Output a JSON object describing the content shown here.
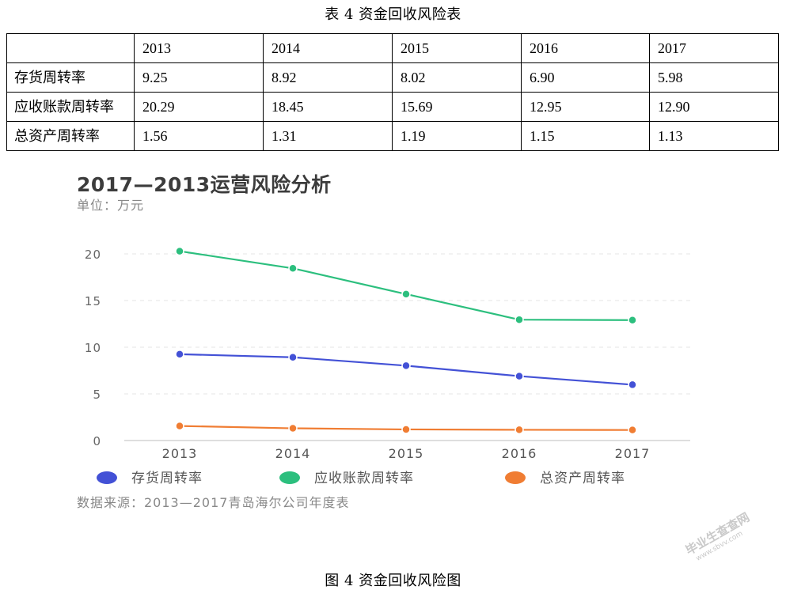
{
  "table": {
    "caption": "表 4  资金回收风险表",
    "header": [
      "",
      "2013",
      "2014",
      "2015",
      "2016",
      "2017"
    ],
    "rows": [
      {
        "label": "存货周转率",
        "values": [
          "9.25",
          "8.92",
          "8.02",
          "6.90",
          "5.98"
        ]
      },
      {
        "label": "应收账款周转率",
        "values": [
          "20.29",
          "18.45",
          "15.69",
          "12.95",
          "12.90"
        ]
      },
      {
        "label": "总资产周转率",
        "values": [
          "1.56",
          "1.31",
          "1.19",
          "1.15",
          "1.13"
        ]
      }
    ]
  },
  "chart_data": {
    "type": "line",
    "title": "2017—2013运营风险分析",
    "subtitle": "单位：万元",
    "categories": [
      "2013",
      "2014",
      "2015",
      "2016",
      "2017"
    ],
    "yticks": [
      0,
      5,
      10,
      15,
      20
    ],
    "ylim": [
      0,
      23
    ],
    "grid": true,
    "legend_position": "bottom",
    "series": [
      {
        "name": "存货周转率",
        "color": "#4351d6",
        "values": [
          9.25,
          8.92,
          8.02,
          6.9,
          5.98
        ]
      },
      {
        "name": "应收账款周转率",
        "color": "#2cbf7e",
        "values": [
          20.29,
          18.45,
          15.69,
          12.95,
          12.9
        ]
      },
      {
        "name": "总资产周转率",
        "color": "#f07d33",
        "values": [
          1.56,
          1.31,
          1.19,
          1.15,
          1.13
        ]
      }
    ],
    "source": "数据来源：2013—2017青岛海尔公司年度表"
  },
  "figure": {
    "caption": "图 4  资金回收风险图"
  },
  "watermark": {
    "text": "毕业生查查网",
    "sub": "www.sbvv.com"
  }
}
